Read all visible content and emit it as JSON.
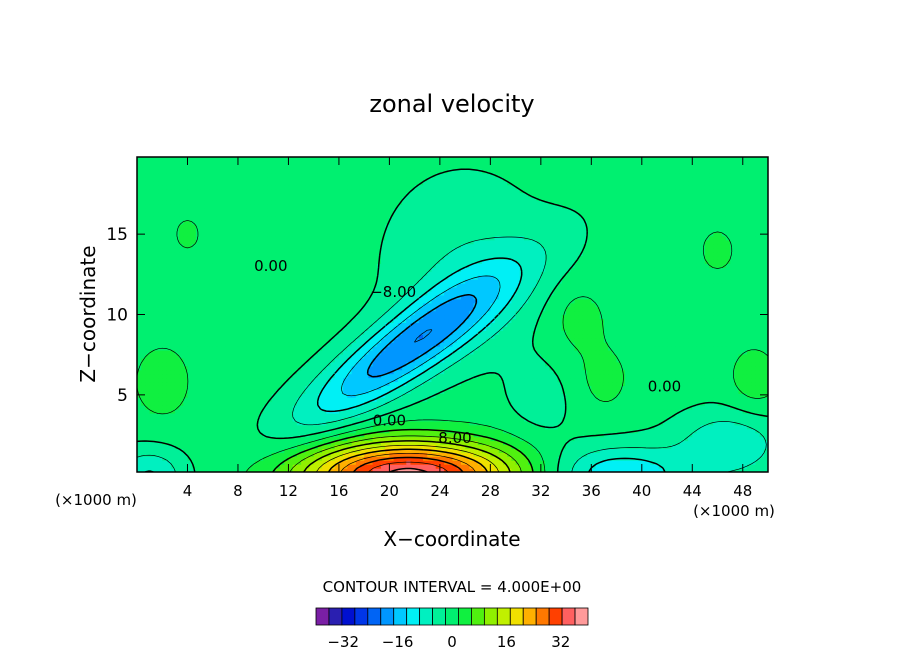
{
  "chart_data": {
    "type": "contour",
    "title": "zonal velocity",
    "xlabel": "X−coordinate",
    "ylabel": "Z−coordinate",
    "x_unit_left": "(×1000 m)",
    "x_unit_right": "(×1000 m)",
    "xlim": [
      0,
      50
    ],
    "ylim": [
      0.2,
      19.8
    ],
    "x_ticks": [
      4,
      8,
      12,
      16,
      20,
      24,
      28,
      32,
      36,
      40,
      44,
      48
    ],
    "y_ticks": [
      5,
      10,
      15
    ],
    "contour_interval_text": "CONTOUR INTERVAL = 4.000E+00",
    "contour_labels": [
      {
        "text": "0.00",
        "x": 10.6,
        "z": 12.7
      },
      {
        "text": "−8.00",
        "x": 20.3,
        "z": 11.1
      },
      {
        "text": "0.00",
        "x": 20.0,
        "z": 3.1
      },
      {
        "text": "8.00",
        "x": 25.2,
        "z": 2.0
      },
      {
        "text": "0.00",
        "x": 41.8,
        "z": 5.2
      }
    ],
    "features": [
      {
        "kind": "jet",
        "sign": "negative",
        "center": [
          22,
          8
        ],
        "min": -16
      },
      {
        "kind": "jet",
        "sign": "positive",
        "center": [
          22,
          0.4
        ],
        "max": 36
      },
      {
        "kind": "jet",
        "sign": "negative",
        "center": [
          38,
          0.6
        ],
        "min": -12
      }
    ],
    "colorbar": {
      "levels": [
        -40,
        -36,
        -32,
        -28,
        -24,
        -20,
        -16,
        -12,
        -8,
        -4,
        0,
        4,
        8,
        12,
        16,
        20,
        24,
        28,
        32,
        36,
        40
      ],
      "colors": [
        "#7a1fa5",
        "#2a1fb0",
        "#0010d0",
        "#0036e8",
        "#0064f5",
        "#0096ff",
        "#00c8ff",
        "#00f0f5",
        "#00f0c0",
        "#00f098",
        "#00f070",
        "#10f040",
        "#50f010",
        "#90f000",
        "#c0f000",
        "#f0e000",
        "#ffb000",
        "#ff7800",
        "#ff4000",
        "#ff6060",
        "#ff9a9a"
      ],
      "tick_labels": [
        {
          "level": -32,
          "text": "−32"
        },
        {
          "level": -16,
          "text": "−16"
        },
        {
          "level": 0,
          "text": "0"
        },
        {
          "level": 16,
          "text": "16"
        },
        {
          "level": 32,
          "text": "32"
        }
      ]
    }
  }
}
